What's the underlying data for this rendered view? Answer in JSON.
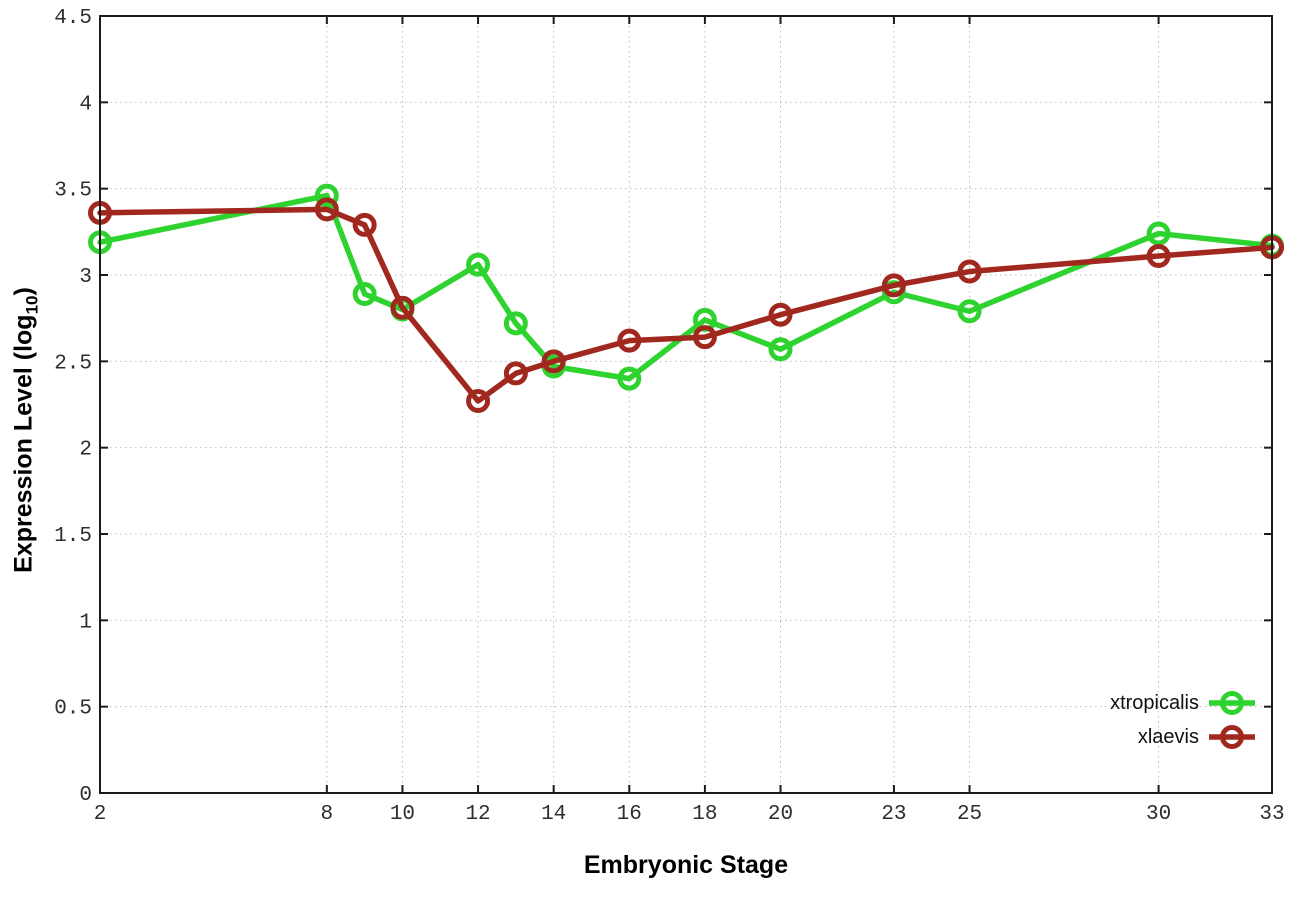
{
  "chart_data": {
    "type": "line",
    "title": "",
    "xlabel": "Embryonic Stage",
    "ylabel": "Expression Level (log10)",
    "ylabel_parts": {
      "pre": "Expression Level (log",
      "sub": "10",
      "post": ")"
    },
    "x": [
      2,
      8,
      9,
      10,
      12,
      13,
      14,
      16,
      18,
      20,
      23,
      25,
      30,
      33
    ],
    "series": [
      {
        "name": "xtropicalis",
        "color": "#2fd32f",
        "values": [
          3.19,
          3.46,
          2.89,
          2.8,
          3.06,
          2.72,
          2.47,
          2.4,
          2.74,
          2.57,
          2.9,
          2.79,
          3.24,
          3.17
        ]
      },
      {
        "name": "xlaevis",
        "color": "#a1281f",
        "values": [
          3.36,
          3.38,
          3.29,
          2.81,
          2.27,
          2.43,
          2.5,
          2.62,
          2.64,
          2.77,
          2.94,
          3.02,
          3.11,
          3.16
        ]
      }
    ],
    "xlim": [
      2,
      33
    ],
    "ylim": [
      0,
      4.5
    ],
    "x_tick_values": [
      2,
      8,
      10,
      12,
      14,
      16,
      18,
      20,
      23,
      25,
      30,
      33
    ],
    "x_tick_labels": [
      "2",
      "8",
      "10",
      "12",
      "14",
      "16",
      "18",
      "20",
      "23",
      "25",
      "30",
      "33"
    ],
    "y_tick_values": [
      0,
      0.5,
      1,
      1.5,
      2,
      2.5,
      3,
      3.5,
      4,
      4.5
    ],
    "y_tick_labels": [
      "0",
      "0.5",
      "1",
      "1.5",
      "2",
      "2.5",
      "3",
      "3.5",
      "4",
      "4.5"
    ],
    "grid": true,
    "legend_position": "inside-bottom-right",
    "marker": "open-circle"
  },
  "styles": {
    "grid_color": "#bcbcbc",
    "border_color": "#1a1a1a",
    "tick_label_color": "#2e2e2e",
    "background": "#ffffff"
  }
}
